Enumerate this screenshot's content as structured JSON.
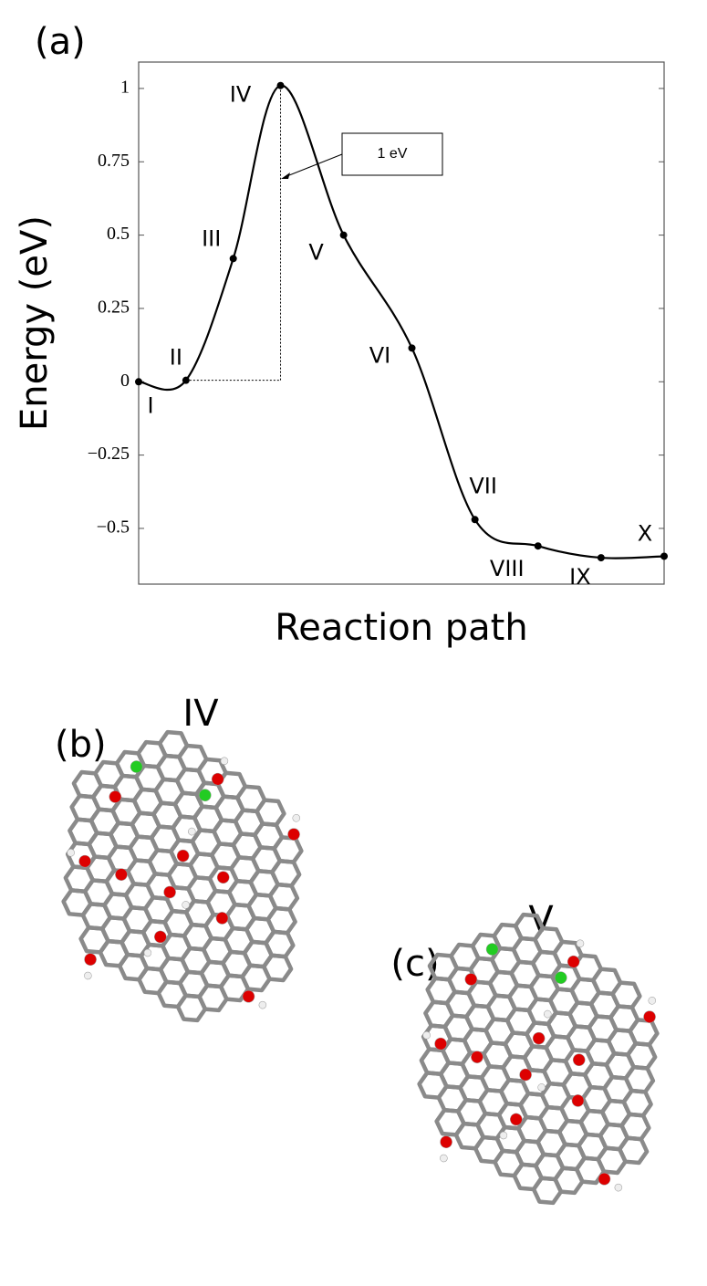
{
  "chart_data": {
    "type": "line",
    "panel_label": "(a)",
    "ylabel": "Energy (eV)",
    "xlabel": "Reaction path",
    "categories": [
      "I",
      "II",
      "III",
      "IV",
      "V",
      "VI",
      "VII",
      "VIII",
      "IX",
      "X"
    ],
    "x": [
      0,
      0.09,
      0.18,
      0.27,
      0.39,
      0.52,
      0.64,
      0.76,
      0.88,
      1.0
    ],
    "values": [
      0,
      0.005,
      0.42,
      1.01,
      0.5,
      0.115,
      -0.47,
      -0.56,
      -0.6,
      -0.595
    ],
    "color": "#000000",
    "xlim": [
      0,
      1
    ],
    "ylim": [
      -0.69,
      1.09
    ],
    "yticks": [
      1,
      0.75,
      0.5,
      0.25,
      0,
      {
        "value": -0.25,
        "label": "−0.25"
      },
      {
        "value": -0.5,
        "label": "−0.5"
      }
    ],
    "annotation": "1 eV"
  },
  "panels": [
    {
      "label": "(b)",
      "state": "IV"
    },
    {
      "label": "(c)",
      "state": "V"
    }
  ]
}
